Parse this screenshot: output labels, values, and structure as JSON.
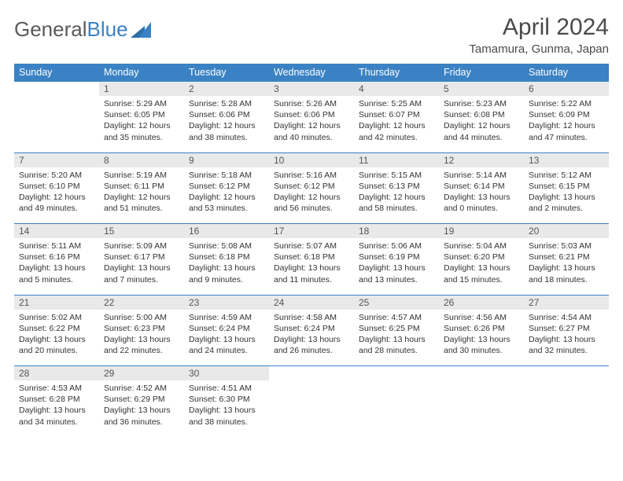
{
  "logo": {
    "text1": "General",
    "text2": "Blue"
  },
  "title": "April 2024",
  "subtitle": "Tamamura, Gunma, Japan",
  "weekdays": [
    "Sunday",
    "Monday",
    "Tuesday",
    "Wednesday",
    "Thursday",
    "Friday",
    "Saturday"
  ],
  "colors": {
    "header_bg": "#3b82c4",
    "header_text": "#ffffff",
    "daynum_bg": "#e9e9e9",
    "body_text": "#333333",
    "rule": "#3b82c4"
  },
  "weeks": [
    [
      null,
      {
        "n": "1",
        "sr": "Sunrise: 5:29 AM",
        "ss": "Sunset: 6:05 PM",
        "d1": "Daylight: 12 hours",
        "d2": "and 35 minutes."
      },
      {
        "n": "2",
        "sr": "Sunrise: 5:28 AM",
        "ss": "Sunset: 6:06 PM",
        "d1": "Daylight: 12 hours",
        "d2": "and 38 minutes."
      },
      {
        "n": "3",
        "sr": "Sunrise: 5:26 AM",
        "ss": "Sunset: 6:06 PM",
        "d1": "Daylight: 12 hours",
        "d2": "and 40 minutes."
      },
      {
        "n": "4",
        "sr": "Sunrise: 5:25 AM",
        "ss": "Sunset: 6:07 PM",
        "d1": "Daylight: 12 hours",
        "d2": "and 42 minutes."
      },
      {
        "n": "5",
        "sr": "Sunrise: 5:23 AM",
        "ss": "Sunset: 6:08 PM",
        "d1": "Daylight: 12 hours",
        "d2": "and 44 minutes."
      },
      {
        "n": "6",
        "sr": "Sunrise: 5:22 AM",
        "ss": "Sunset: 6:09 PM",
        "d1": "Daylight: 12 hours",
        "d2": "and 47 minutes."
      }
    ],
    [
      {
        "n": "7",
        "sr": "Sunrise: 5:20 AM",
        "ss": "Sunset: 6:10 PM",
        "d1": "Daylight: 12 hours",
        "d2": "and 49 minutes."
      },
      {
        "n": "8",
        "sr": "Sunrise: 5:19 AM",
        "ss": "Sunset: 6:11 PM",
        "d1": "Daylight: 12 hours",
        "d2": "and 51 minutes."
      },
      {
        "n": "9",
        "sr": "Sunrise: 5:18 AM",
        "ss": "Sunset: 6:12 PM",
        "d1": "Daylight: 12 hours",
        "d2": "and 53 minutes."
      },
      {
        "n": "10",
        "sr": "Sunrise: 5:16 AM",
        "ss": "Sunset: 6:12 PM",
        "d1": "Daylight: 12 hours",
        "d2": "and 56 minutes."
      },
      {
        "n": "11",
        "sr": "Sunrise: 5:15 AM",
        "ss": "Sunset: 6:13 PM",
        "d1": "Daylight: 12 hours",
        "d2": "and 58 minutes."
      },
      {
        "n": "12",
        "sr": "Sunrise: 5:14 AM",
        "ss": "Sunset: 6:14 PM",
        "d1": "Daylight: 13 hours",
        "d2": "and 0 minutes."
      },
      {
        "n": "13",
        "sr": "Sunrise: 5:12 AM",
        "ss": "Sunset: 6:15 PM",
        "d1": "Daylight: 13 hours",
        "d2": "and 2 minutes."
      }
    ],
    [
      {
        "n": "14",
        "sr": "Sunrise: 5:11 AM",
        "ss": "Sunset: 6:16 PM",
        "d1": "Daylight: 13 hours",
        "d2": "and 5 minutes."
      },
      {
        "n": "15",
        "sr": "Sunrise: 5:09 AM",
        "ss": "Sunset: 6:17 PM",
        "d1": "Daylight: 13 hours",
        "d2": "and 7 minutes."
      },
      {
        "n": "16",
        "sr": "Sunrise: 5:08 AM",
        "ss": "Sunset: 6:18 PM",
        "d1": "Daylight: 13 hours",
        "d2": "and 9 minutes."
      },
      {
        "n": "17",
        "sr": "Sunrise: 5:07 AM",
        "ss": "Sunset: 6:18 PM",
        "d1": "Daylight: 13 hours",
        "d2": "and 11 minutes."
      },
      {
        "n": "18",
        "sr": "Sunrise: 5:06 AM",
        "ss": "Sunset: 6:19 PM",
        "d1": "Daylight: 13 hours",
        "d2": "and 13 minutes."
      },
      {
        "n": "19",
        "sr": "Sunrise: 5:04 AM",
        "ss": "Sunset: 6:20 PM",
        "d1": "Daylight: 13 hours",
        "d2": "and 15 minutes."
      },
      {
        "n": "20",
        "sr": "Sunrise: 5:03 AM",
        "ss": "Sunset: 6:21 PM",
        "d1": "Daylight: 13 hours",
        "d2": "and 18 minutes."
      }
    ],
    [
      {
        "n": "21",
        "sr": "Sunrise: 5:02 AM",
        "ss": "Sunset: 6:22 PM",
        "d1": "Daylight: 13 hours",
        "d2": "and 20 minutes."
      },
      {
        "n": "22",
        "sr": "Sunrise: 5:00 AM",
        "ss": "Sunset: 6:23 PM",
        "d1": "Daylight: 13 hours",
        "d2": "and 22 minutes."
      },
      {
        "n": "23",
        "sr": "Sunrise: 4:59 AM",
        "ss": "Sunset: 6:24 PM",
        "d1": "Daylight: 13 hours",
        "d2": "and 24 minutes."
      },
      {
        "n": "24",
        "sr": "Sunrise: 4:58 AM",
        "ss": "Sunset: 6:24 PM",
        "d1": "Daylight: 13 hours",
        "d2": "and 26 minutes."
      },
      {
        "n": "25",
        "sr": "Sunrise: 4:57 AM",
        "ss": "Sunset: 6:25 PM",
        "d1": "Daylight: 13 hours",
        "d2": "and 28 minutes."
      },
      {
        "n": "26",
        "sr": "Sunrise: 4:56 AM",
        "ss": "Sunset: 6:26 PM",
        "d1": "Daylight: 13 hours",
        "d2": "and 30 minutes."
      },
      {
        "n": "27",
        "sr": "Sunrise: 4:54 AM",
        "ss": "Sunset: 6:27 PM",
        "d1": "Daylight: 13 hours",
        "d2": "and 32 minutes."
      }
    ],
    [
      {
        "n": "28",
        "sr": "Sunrise: 4:53 AM",
        "ss": "Sunset: 6:28 PM",
        "d1": "Daylight: 13 hours",
        "d2": "and 34 minutes."
      },
      {
        "n": "29",
        "sr": "Sunrise: 4:52 AM",
        "ss": "Sunset: 6:29 PM",
        "d1": "Daylight: 13 hours",
        "d2": "and 36 minutes."
      },
      {
        "n": "30",
        "sr": "Sunrise: 4:51 AM",
        "ss": "Sunset: 6:30 PM",
        "d1": "Daylight: 13 hours",
        "d2": "and 38 minutes."
      },
      null,
      null,
      null,
      null
    ]
  ]
}
